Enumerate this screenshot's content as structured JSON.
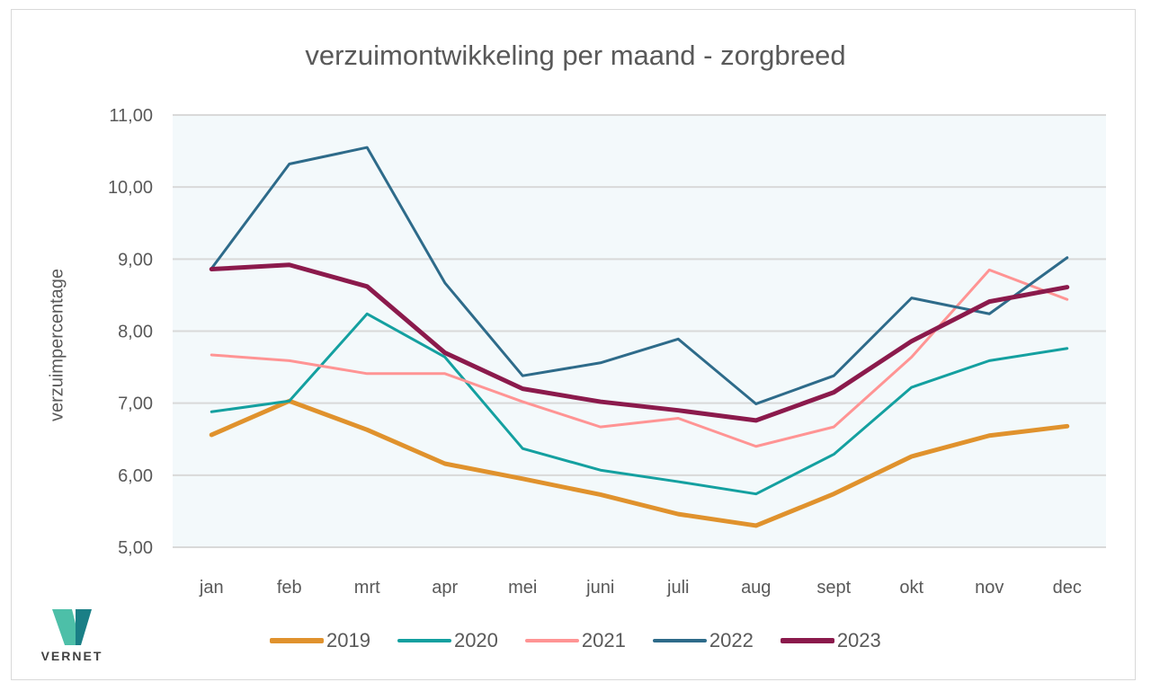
{
  "brand": {
    "logo_text": "VERNET",
    "logo_colors": [
      "#4dbfa8",
      "#1a7f86"
    ]
  },
  "chart_data": {
    "type": "line",
    "title": "verzuimontwikkeling per maand - zorgbreed",
    "xlabel": "",
    "ylabel": "verzuimpercentage",
    "ylim": [
      5,
      11
    ],
    "yticks": [
      "5,00",
      "6,00",
      "7,00",
      "8,00",
      "9,00",
      "10,00",
      "11,00"
    ],
    "ytick_values": [
      5,
      6,
      7,
      8,
      9,
      10,
      11
    ],
    "grid": true,
    "plot_background": "#f3f9fb",
    "legend_position": "bottom",
    "categories": [
      "jan",
      "feb",
      "mrt",
      "apr",
      "mei",
      "juni",
      "juli",
      "aug",
      "sept",
      "okt",
      "nov",
      "dec"
    ],
    "series": [
      {
        "name": "2019",
        "color": "#e0922d",
        "weight": "thick",
        "values": [
          6.56,
          7.03,
          6.63,
          6.16,
          5.95,
          5.73,
          5.46,
          5.3,
          5.74,
          6.26,
          6.55,
          6.68
        ]
      },
      {
        "name": "2020",
        "color": "#14a0a0",
        "weight": "normal",
        "values": [
          6.88,
          7.03,
          8.24,
          7.64,
          6.37,
          6.07,
          5.91,
          5.74,
          6.29,
          7.22,
          7.59,
          7.76
        ]
      },
      {
        "name": "2021",
        "color": "#ff9494",
        "weight": "normal",
        "values": [
          7.67,
          7.59,
          7.41,
          7.41,
          7.02,
          6.67,
          6.79,
          6.4,
          6.67,
          7.64,
          8.85,
          8.44
        ]
      },
      {
        "name": "2022",
        "color": "#2e6b8a",
        "weight": "normal",
        "values": [
          8.87,
          10.32,
          10.55,
          8.67,
          7.38,
          7.56,
          7.89,
          6.99,
          7.38,
          8.46,
          8.24,
          9.02
        ]
      },
      {
        "name": "2023",
        "color": "#8b1a4c",
        "weight": "thick",
        "values": [
          8.86,
          8.92,
          8.62,
          7.7,
          7.2,
          7.02,
          6.9,
          6.76,
          7.15,
          7.86,
          8.41,
          8.61
        ]
      }
    ]
  }
}
